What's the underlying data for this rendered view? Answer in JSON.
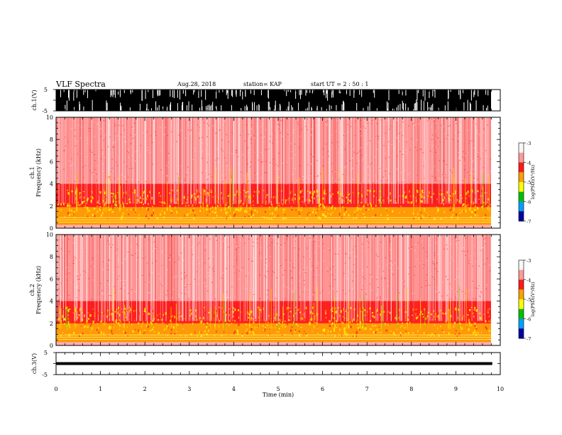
{
  "header": {
    "title": "VLF Spectra",
    "date": "Aug.28, 2018",
    "station": "station= KAP",
    "start": "start  UT =   2 : 50 : 1"
  },
  "colorbar": {
    "label": "log(PSD)(V²/Hz)",
    "ticks": [
      "-3",
      "-4",
      "-5",
      "-6",
      "-7"
    ],
    "colors": [
      "#f7f7f7",
      "#ff9a9a",
      "#ff1a1a",
      "#ffa000",
      "#ffff00",
      "#00c000",
      "#00a0ff",
      "#0000a0",
      "#000000"
    ]
  },
  "chart_data": [
    {
      "type": "line",
      "ylabel": "ch.1(V)",
      "ylim": [
        -5,
        5
      ],
      "yticks": [
        "5",
        "-5"
      ],
      "description_of_trace": "dense sferics, near full scale"
    },
    {
      "type": "heatmap",
      "ylabel": "Frequency (kHz)",
      "channel_label": "ch.1",
      "ylim": [
        0,
        10
      ],
      "yticks": [
        "0",
        "2",
        "4",
        "6",
        "8",
        "10"
      ],
      "xlim": [
        0,
        10
      ],
      "z_range": [
        -7,
        -3
      ],
      "bands": [
        {
          "f_low": 0.3,
          "f_high": 0.9,
          "level": -4.4
        },
        {
          "f_low": 0.9,
          "f_high": 1.9,
          "level": -4.6
        },
        {
          "f_low": 1.9,
          "f_high": 4.0,
          "level": -4.0
        },
        {
          "f_low": 4.0,
          "f_high": 10.0,
          "level": -3.6
        }
      ]
    },
    {
      "type": "heatmap",
      "ylabel": "Frequency (kHz)",
      "channel_label": "ch.2",
      "ylim": [
        0,
        10
      ],
      "yticks": [
        "0",
        "2",
        "4",
        "6",
        "8",
        "10"
      ],
      "xlim": [
        0,
        10
      ],
      "z_range": [
        -7,
        -3
      ],
      "bands": [
        {
          "f_low": 0.3,
          "f_high": 0.9,
          "level": -4.4
        },
        {
          "f_low": 0.9,
          "f_high": 2.0,
          "level": -4.6
        },
        {
          "f_low": 2.0,
          "f_high": 4.0,
          "level": -4.0
        },
        {
          "f_low": 4.0,
          "f_high": 10.0,
          "level": -3.5
        }
      ]
    },
    {
      "type": "line",
      "ylabel": "ch.3(V)",
      "ylim": [
        -5,
        5
      ],
      "yticks": [
        "5",
        "-5"
      ],
      "x": [
        0,
        9.82
      ],
      "y": [
        0,
        0
      ]
    }
  ],
  "xaxis": {
    "label": "Time (min)",
    "ticks": [
      "0",
      "1",
      "2",
      "3",
      "4",
      "5",
      "6",
      "7",
      "8",
      "9",
      "10"
    ],
    "xlim": [
      0,
      10
    ],
    "data_end": 9.82
  }
}
